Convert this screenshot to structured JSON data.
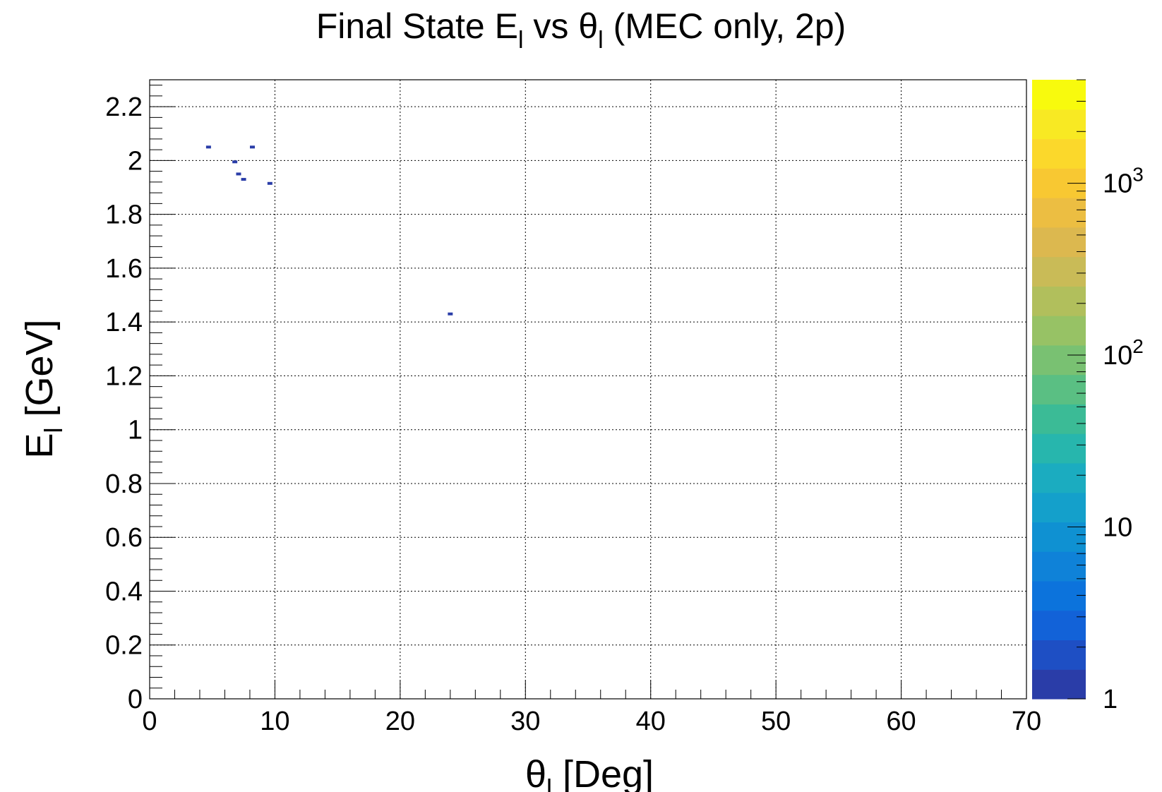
{
  "chart_data": {
    "type": "heatmap",
    "title": {
      "prefix": "Final State E",
      "sub1": "l",
      "middle": " vs θ",
      "sub2": "l",
      "suffix": " (MEC only, 2p)"
    },
    "xlabel": {
      "main": "θ",
      "sub": "l",
      "rest": " [Deg]"
    },
    "ylabel": {
      "main": "E",
      "sub": "l",
      "rest": " [GeV]"
    },
    "xlim": [
      0,
      70
    ],
    "ylim": [
      0,
      2.3
    ],
    "x_ticks": [
      "0",
      "10",
      "20",
      "30",
      "40",
      "50",
      "60",
      "70"
    ],
    "y_ticks": [
      "0",
      "0.2",
      "0.4",
      "0.6",
      "0.8",
      "1",
      "1.2",
      "1.4",
      "1.6",
      "1.8",
      "2",
      "2.2"
    ],
    "grid": true,
    "colorbar": {
      "scale": "log",
      "zlim": [
        1,
        4000
      ],
      "labels": [
        "1",
        "10",
        "10^2",
        "10^3"
      ],
      "colors": [
        "#2a3da8",
        "#1e4fc4",
        "#1262d8",
        "#0c73dc",
        "#0f82d8",
        "#0f91d2",
        "#14a0cb",
        "#1bacc0",
        "#27b6ad",
        "#3bbb96",
        "#5abf83",
        "#79c172",
        "#97c265",
        "#b1bf5c",
        "#c9bb57",
        "#dcb84f",
        "#ecbe42",
        "#f8c832",
        "#fbd82b",
        "#f8e923",
        "#f8fa0d"
      ]
    },
    "points": [
      {
        "x": 4.7,
        "y": 2.05,
        "z": 1
      },
      {
        "x": 6.8,
        "y": 1.995,
        "z": 1
      },
      {
        "x": 7.1,
        "y": 1.95,
        "z": 1
      },
      {
        "x": 7.5,
        "y": 1.93,
        "z": 1
      },
      {
        "x": 8.2,
        "y": 2.05,
        "z": 1
      },
      {
        "x": 9.6,
        "y": 1.915,
        "z": 1
      },
      {
        "x": 24.0,
        "y": 1.43,
        "z": 1
      }
    ]
  }
}
